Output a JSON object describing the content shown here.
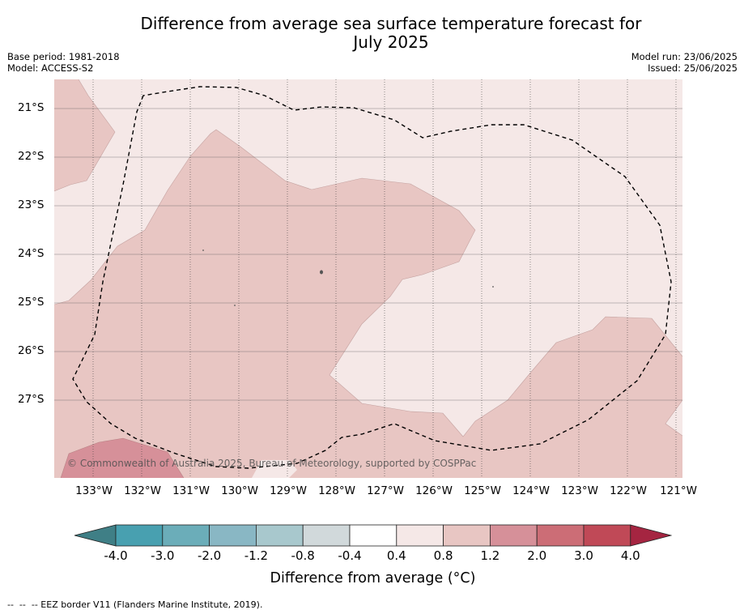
{
  "title_line1": "Difference from average sea surface temperature forecast for",
  "title_line2": "July 2025",
  "base_period": "Base period: 1981-2018",
  "model": "Model: ACCESS-S2",
  "model_run": "Model run: 23/06/2025",
  "issued": "Issued: 25/06/2025",
  "copyright": "© Commonwealth of Australia 2025, Bureau of Meteorology, supported by COSPPac",
  "lat_labels": [
    "21°S",
    "22°S",
    "23°S",
    "24°S",
    "25°S",
    "26°S",
    "27°S"
  ],
  "lon_labels": [
    "133°W",
    "132°W",
    "131°W",
    "130°W",
    "129°W",
    "128°W",
    "127°W",
    "126°W",
    "125°W",
    "124°W",
    "123°W",
    "122°W",
    "121°W"
  ],
  "colorbar": {
    "ticks": [
      "-4.0",
      "-3.0",
      "-2.0",
      "-1.2",
      "-0.8",
      "-0.4",
      "0.4",
      "0.8",
      "1.2",
      "2.0",
      "3.0",
      "4.0"
    ],
    "colors": [
      "#3f7f86",
      "#48a0b0",
      "#6badb9",
      "#89b7c4",
      "#a8c8cd",
      "#d1d9db",
      "#ffffff",
      "#f5e8e7",
      "#e8c6c3",
      "#d69099",
      "#cc6d76",
      "#c04957",
      "#a52541"
    ],
    "label": "Difference from average (°C)"
  },
  "footnote": "--  --  -- EEZ border V11 (Flanders Marine Institute, 2019).",
  "map_colors": {
    "low": "#f5e8e7",
    "mid": "#e8c6c3",
    "high": "#d69099"
  }
}
